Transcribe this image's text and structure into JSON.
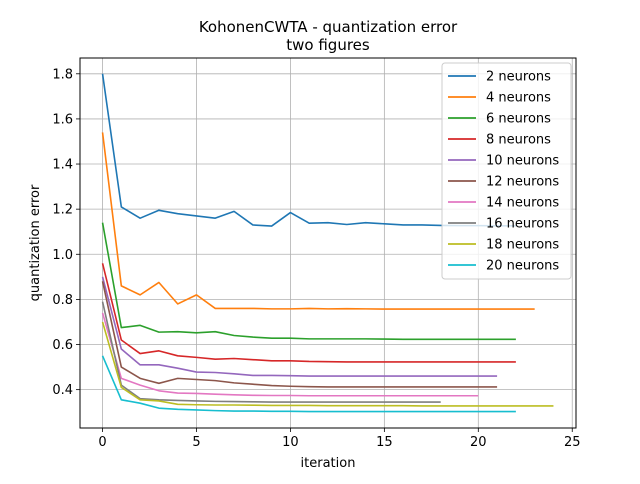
{
  "chart_data": {
    "type": "line",
    "title": "KohonenCWTA - quantization error",
    "subtitle": "two figures",
    "xlabel": "iteration",
    "ylabel": "quantization error",
    "xlim": [
      -1.2,
      25.2
    ],
    "ylim": [
      0.23,
      1.87
    ],
    "xticks": [
      0,
      5,
      10,
      15,
      20,
      25
    ],
    "yticks": [
      0.4,
      0.6,
      0.8,
      1.0,
      1.2,
      1.4,
      1.6,
      1.8
    ],
    "grid": true,
    "legend_position": "top-right",
    "series": [
      {
        "name": "2 neurons",
        "color": "#1f77b4",
        "values": [
          1.8,
          1.21,
          1.16,
          1.195,
          1.18,
          1.17,
          1.16,
          1.19,
          1.13,
          1.125,
          1.185,
          1.138,
          1.14,
          1.132,
          1.14,
          1.135,
          1.13,
          1.13,
          1.128,
          1.127,
          1.127,
          1.126,
          1.126
        ]
      },
      {
        "name": "4 neurons",
        "color": "#ff7f0e",
        "values": [
          1.54,
          0.86,
          0.82,
          0.875,
          0.78,
          0.82,
          0.76,
          0.76,
          0.76,
          0.758,
          0.758,
          0.76,
          0.758,
          0.759,
          0.758,
          0.757,
          0.757,
          0.757,
          0.757,
          0.757,
          0.757,
          0.757,
          0.757,
          0.757
        ]
      },
      {
        "name": "6 neurons",
        "color": "#2ca02c",
        "values": [
          1.14,
          0.675,
          0.685,
          0.655,
          0.657,
          0.652,
          0.657,
          0.64,
          0.633,
          0.628,
          0.628,
          0.625,
          0.625,
          0.625,
          0.625,
          0.624,
          0.623,
          0.623,
          0.623,
          0.623,
          0.623,
          0.623,
          0.623
        ]
      },
      {
        "name": "8 neurons",
        "color": "#d62728",
        "values": [
          0.96,
          0.62,
          0.56,
          0.572,
          0.55,
          0.543,
          0.535,
          0.538,
          0.533,
          0.528,
          0.528,
          0.525,
          0.524,
          0.523,
          0.523,
          0.523,
          0.523,
          0.523,
          0.523,
          0.523,
          0.523,
          0.523,
          0.523
        ]
      },
      {
        "name": "10 neurons",
        "color": "#9467bd",
        "values": [
          0.9,
          0.58,
          0.51,
          0.51,
          0.495,
          0.478,
          0.476,
          0.47,
          0.463,
          0.463,
          0.462,
          0.46,
          0.46,
          0.46,
          0.46,
          0.46,
          0.46,
          0.46,
          0.46,
          0.46,
          0.46,
          0.46
        ]
      },
      {
        "name": "12 neurons",
        "color": "#8c564b",
        "values": [
          0.88,
          0.5,
          0.45,
          0.428,
          0.45,
          0.445,
          0.44,
          0.43,
          0.424,
          0.418,
          0.415,
          0.413,
          0.412,
          0.412,
          0.412,
          0.412,
          0.412,
          0.412,
          0.412,
          0.412,
          0.412,
          0.412
        ]
      },
      {
        "name": "14 neurons",
        "color": "#e377c2",
        "values": [
          0.74,
          0.45,
          0.42,
          0.395,
          0.385,
          0.383,
          0.38,
          0.377,
          0.375,
          0.374,
          0.374,
          0.373,
          0.373,
          0.373,
          0.373,
          0.373,
          0.373,
          0.373,
          0.373,
          0.373,
          0.373
        ]
      },
      {
        "name": "16 neurons",
        "color": "#7f7f7f",
        "values": [
          0.79,
          0.42,
          0.36,
          0.355,
          0.352,
          0.35,
          0.348,
          0.347,
          0.346,
          0.345,
          0.345,
          0.345,
          0.345,
          0.345,
          0.345,
          0.345,
          0.345,
          0.345,
          0.345
        ]
      },
      {
        "name": "18 neurons",
        "color": "#bcbd22",
        "values": [
          0.7,
          0.41,
          0.355,
          0.35,
          0.335,
          0.333,
          0.332,
          0.332,
          0.331,
          0.33,
          0.33,
          0.33,
          0.329,
          0.329,
          0.329,
          0.329,
          0.329,
          0.328,
          0.328,
          0.328,
          0.328,
          0.328,
          0.328,
          0.328,
          0.328
        ]
      },
      {
        "name": "20 neurons",
        "color": "#17becf",
        "values": [
          0.55,
          0.355,
          0.34,
          0.318,
          0.313,
          0.31,
          0.307,
          0.305,
          0.305,
          0.304,
          0.304,
          0.303,
          0.303,
          0.303,
          0.303,
          0.303,
          0.303,
          0.303,
          0.303,
          0.303,
          0.303,
          0.303,
          0.303
        ]
      }
    ]
  }
}
